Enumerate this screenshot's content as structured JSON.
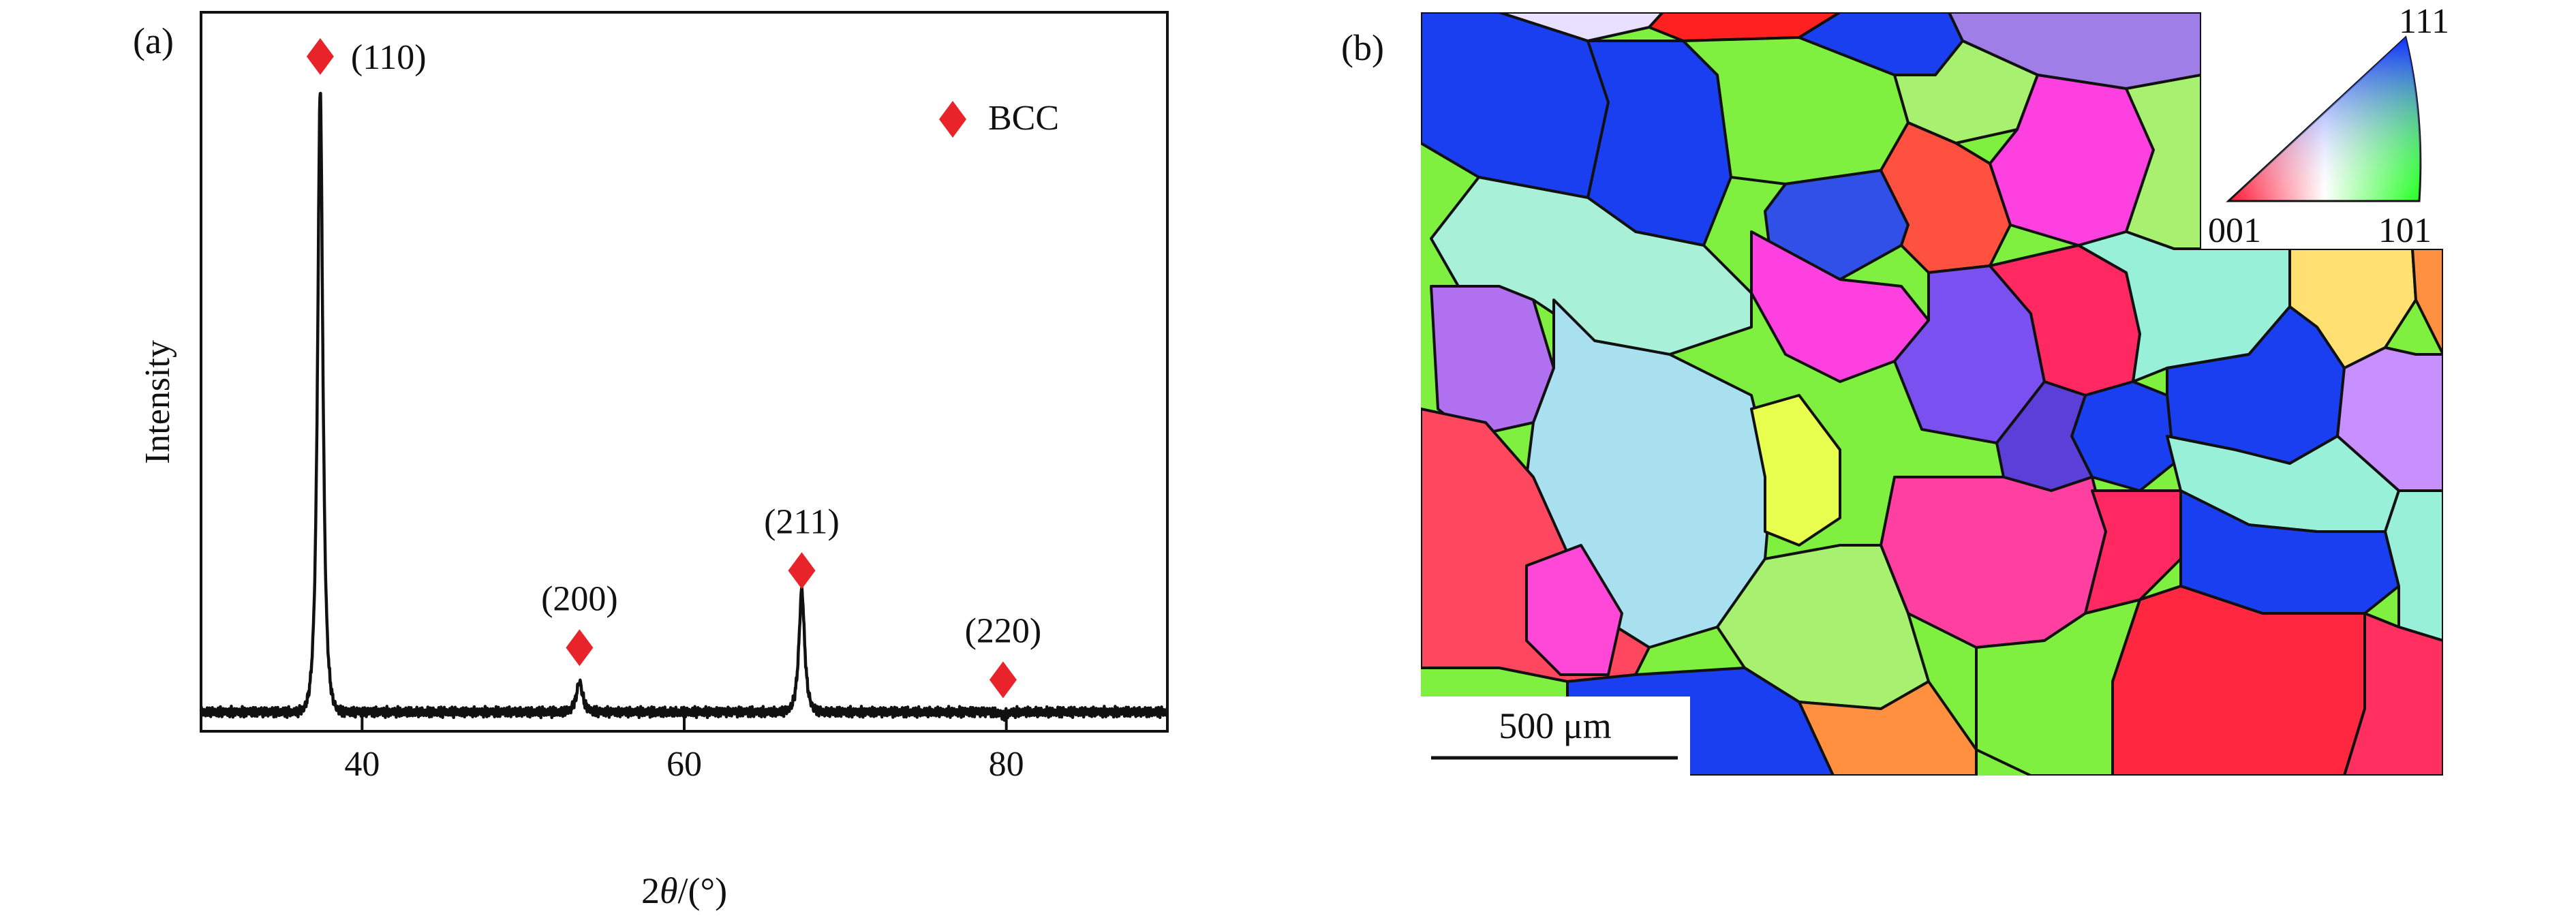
{
  "panel_a": {
    "label": "(a)",
    "legend": {
      "marker_color": "#e8232a",
      "label": "BCC",
      "position": "top-right"
    },
    "chart_data": {
      "type": "line",
      "title": "",
      "xlabel": "2θ/(°)",
      "ylabel": "Intensity",
      "xlim": [
        30,
        90
      ],
      "ylim": [
        0,
        1
      ],
      "xticks": [
        40,
        60,
        80
      ],
      "grid": false,
      "series": [
        {
          "color": "#111111",
          "baseline": 0.03,
          "peaks": [
            {
              "center": 37.4,
              "height": 1.0,
              "width": 0.3
            },
            {
              "center": 53.5,
              "height": 0.077,
              "width": 0.35
            },
            {
              "center": 67.3,
              "height": 0.22,
              "width": 0.32
            },
            {
              "center": 79.8,
              "height": 0.025,
              "width": 0.4
            }
          ]
        }
      ],
      "annotations": [
        {
          "text": "(110)",
          "x": 37.4,
          "marker_y": 1.05
        },
        {
          "text": "(200)",
          "x": 53.5,
          "marker_y": 0.13
        },
        {
          "text": "(211)",
          "x": 67.3,
          "marker_y": 0.25
        },
        {
          "text": "(220)",
          "x": 79.8,
          "marker_y": 0.08
        }
      ]
    }
  },
  "panel_b": {
    "label": "(b)",
    "scale_bar": {
      "text": "500 μm",
      "value_um": 500
    },
    "ipf_key": {
      "corner_top": "111",
      "corner_left": "001",
      "corner_right": "101"
    }
  }
}
